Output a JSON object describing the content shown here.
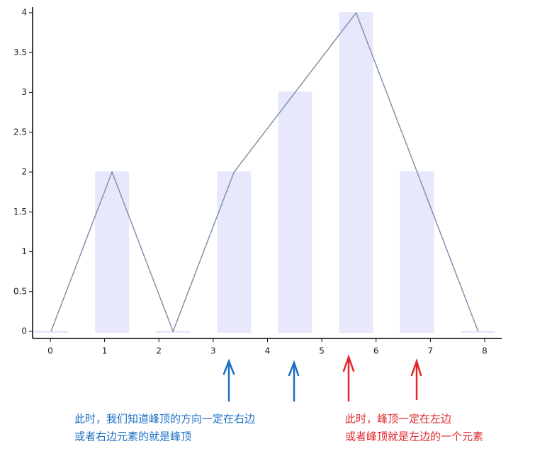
{
  "chart_data": {
    "type": "bar",
    "values": [
      0,
      2,
      0,
      2,
      3,
      4,
      2,
      0
    ],
    "color": "#e8e8fc",
    "line_color": "#8491a8",
    "ylim": [
      0,
      4
    ],
    "yticks": [
      0,
      0.5,
      1,
      1.5,
      2,
      2.5,
      3,
      3.5,
      4
    ],
    "xlim": [
      0,
      8
    ],
    "xticks": [
      0,
      1,
      2,
      3,
      4,
      5,
      6,
      7,
      8
    ],
    "annotations": [
      {
        "lines": [
          "此时，我们知道峰顶的方向一定在右边",
          "或者右边元素的就是峰顶"
        ],
        "color": "#1a6fc4"
      },
      {
        "lines": [
          "此时，峰顶一定在左边",
          "或者峰顶就是左边的一个元素"
        ],
        "color": "#e0282c"
      }
    ]
  }
}
